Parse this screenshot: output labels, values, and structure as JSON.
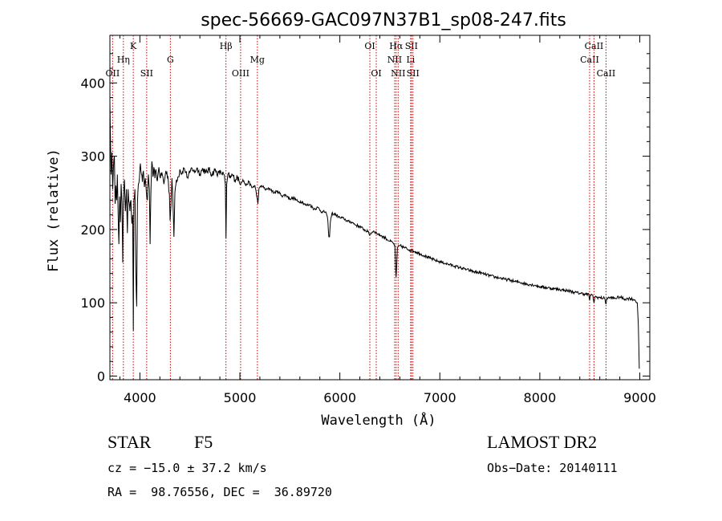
{
  "chart_data": {
    "type": "line",
    "title": "spec-56669-GAC097N37B1_sp08-247.fits",
    "xlabel": "Wavelength (Å)",
    "ylabel": "Flux (relative)",
    "xlim": [
      3700,
      9100
    ],
    "ylim": [
      -5,
      465
    ],
    "xticks": [
      4000,
      5000,
      6000,
      7000,
      8000,
      9000
    ],
    "yticks": [
      0,
      100,
      200,
      300,
      400
    ],
    "grid": false,
    "spectrum_anchors": [
      [
        3700,
        375
      ],
      [
        3705,
        330
      ],
      [
        3712,
        275
      ],
      [
        3720,
        305
      ],
      [
        3728,
        255
      ],
      [
        3735,
        285
      ],
      [
        3745,
        300
      ],
      [
        3752,
        235
      ],
      [
        3760,
        260
      ],
      [
        3768,
        240
      ],
      [
        3775,
        275
      ],
      [
        3782,
        225
      ],
      [
        3790,
        180
      ],
      [
        3797,
        245
      ],
      [
        3805,
        210
      ],
      [
        3812,
        262
      ],
      [
        3820,
        235
      ],
      [
        3828,
        155
      ],
      [
        3835,
        240
      ],
      [
        3845,
        268
      ],
      [
        3855,
        225
      ],
      [
        3865,
        255
      ],
      [
        3875,
        195
      ],
      [
        3882,
        255
      ],
      [
        3888,
        240
      ],
      [
        3900,
        225
      ],
      [
        3910,
        240
      ],
      [
        3920,
        208
      ],
      [
        3928,
        220
      ],
      [
        3934,
        62
      ],
      [
        3940,
        240
      ],
      [
        3950,
        255
      ],
      [
        3960,
        140
      ],
      [
        3968,
        95
      ],
      [
        3975,
        235
      ],
      [
        3985,
        262
      ],
      [
        3995,
        270
      ],
      [
        4005,
        290
      ],
      [
        4015,
        275
      ],
      [
        4025,
        265
      ],
      [
        4035,
        280
      ],
      [
        4045,
        258
      ],
      [
        4055,
        270
      ],
      [
        4065,
        250
      ],
      [
        4075,
        240
      ],
      [
        4085,
        275
      ],
      [
        4095,
        255
      ],
      [
        4102,
        180
      ],
      [
        4110,
        250
      ],
      [
        4120,
        293
      ],
      [
        4130,
        272
      ],
      [
        4140,
        285
      ],
      [
        4150,
        270
      ],
      [
        4160,
        282
      ],
      [
        4175,
        266
      ],
      [
        4190,
        285
      ],
      [
        4205,
        270
      ],
      [
        4220,
        278
      ],
      [
        4240,
        262
      ],
      [
        4260,
        280
      ],
      [
        4280,
        272
      ],
      [
        4295,
        248
      ],
      [
        4302,
        212
      ],
      [
        4310,
        230
      ],
      [
        4320,
        270
      ],
      [
        4330,
        240
      ],
      [
        4340,
        190
      ],
      [
        4350,
        250
      ],
      [
        4365,
        268
      ],
      [
        4385,
        272
      ],
      [
        4400,
        282
      ],
      [
        4420,
        276
      ],
      [
        4440,
        284
      ],
      [
        4460,
        278
      ],
      [
        4480,
        270
      ],
      [
        4500,
        278
      ],
      [
        4520,
        284
      ],
      [
        4545,
        278
      ],
      [
        4570,
        284
      ],
      [
        4600,
        276
      ],
      [
        4630,
        283
      ],
      [
        4660,
        277
      ],
      [
        4690,
        282
      ],
      [
        4720,
        275
      ],
      [
        4750,
        281
      ],
      [
        4780,
        276
      ],
      [
        4810,
        278
      ],
      [
        4840,
        275
      ],
      [
        4855,
        262
      ],
      [
        4861,
        188
      ],
      [
        4868,
        262
      ],
      [
        4885,
        276
      ],
      [
        4905,
        270
      ],
      [
        4925,
        275
      ],
      [
        4950,
        268
      ],
      [
        4975,
        272
      ],
      [
        5000,
        262
      ],
      [
        5030,
        268
      ],
      [
        5060,
        260
      ],
      [
        5090,
        265
      ],
      [
        5120,
        257
      ],
      [
        5150,
        260
      ],
      [
        5172,
        243
      ],
      [
        5180,
        235
      ],
      [
        5190,
        255
      ],
      [
        5220,
        260
      ],
      [
        5260,
        254
      ],
      [
        5300,
        256
      ],
      [
        5340,
        250
      ],
      [
        5380,
        252
      ],
      [
        5420,
        246
      ],
      [
        5460,
        247
      ],
      [
        5500,
        242
      ],
      [
        5540,
        243
      ],
      [
        5580,
        238
      ],
      [
        5620,
        238
      ],
      [
        5660,
        233
      ],
      [
        5700,
        234
      ],
      [
        5740,
        228
      ],
      [
        5780,
        230
      ],
      [
        5820,
        224
      ],
      [
        5860,
        224
      ],
      [
        5880,
        212
      ],
      [
        5890,
        190
      ],
      [
        5897,
        190
      ],
      [
        5905,
        210
      ],
      [
        5920,
        222
      ],
      [
        5960,
        220
      ],
      [
        6000,
        216
      ],
      [
        6040,
        215
      ],
      [
        6080,
        211
      ],
      [
        6120,
        210
      ],
      [
        6160,
        206
      ],
      [
        6200,
        204
      ],
      [
        6240,
        200
      ],
      [
        6280,
        197
      ],
      [
        6300,
        193
      ],
      [
        6320,
        196
      ],
      [
        6340,
        198
      ],
      [
        6380,
        194
      ],
      [
        6420,
        191
      ],
      [
        6460,
        188
      ],
      [
        6500,
        184
      ],
      [
        6530,
        182
      ],
      [
        6550,
        178
      ],
      [
        6558,
        145
      ],
      [
        6563,
        135
      ],
      [
        6568,
        148
      ],
      [
        6575,
        175
      ],
      [
        6600,
        178
      ],
      [
        6650,
        175
      ],
      [
        6700,
        172
      ],
      [
        6750,
        170
      ],
      [
        6800,
        167
      ],
      [
        6850,
        164
      ],
      [
        6900,
        161
      ],
      [
        6950,
        158
      ],
      [
        7000,
        156
      ],
      [
        7050,
        154
      ],
      [
        7100,
        152
      ],
      [
        7150,
        150
      ],
      [
        7200,
        148
      ],
      [
        7250,
        146
      ],
      [
        7300,
        144
      ],
      [
        7350,
        142
      ],
      [
        7400,
        141
      ],
      [
        7450,
        139
      ],
      [
        7500,
        137
      ],
      [
        7550,
        135
      ],
      [
        7600,
        134
      ],
      [
        7650,
        132
      ],
      [
        7700,
        131
      ],
      [
        7750,
        129
      ],
      [
        7800,
        128
      ],
      [
        7850,
        126
      ],
      [
        7900,
        125
      ],
      [
        7950,
        124
      ],
      [
        8000,
        122
      ],
      [
        8050,
        121
      ],
      [
        8100,
        120
      ],
      [
        8150,
        119
      ],
      [
        8200,
        118
      ],
      [
        8250,
        117
      ],
      [
        8300,
        116
      ],
      [
        8350,
        114
      ],
      [
        8400,
        113
      ],
      [
        8450,
        112
      ],
      [
        8490,
        111
      ],
      [
        8498,
        103
      ],
      [
        8505,
        110
      ],
      [
        8530,
        110
      ],
      [
        8542,
        100
      ],
      [
        8550,
        108
      ],
      [
        8600,
        107
      ],
      [
        8650,
        106
      ],
      [
        8662,
        98
      ],
      [
        8670,
        106
      ],
      [
        8700,
        107
      ],
      [
        8750,
        106
      ],
      [
        8800,
        108
      ],
      [
        8850,
        105
      ],
      [
        8900,
        106
      ],
      [
        8950,
        104
      ],
      [
        8975,
        100
      ],
      [
        8985,
        70
      ],
      [
        8995,
        10
      ]
    ],
    "line_markers": [
      {
        "label": "OII",
        "wavelength": 3727,
        "row": 3
      },
      {
        "label": "Hη",
        "wavelength": 3835,
        "row": 2
      },
      {
        "label": "K",
        "wavelength": 3934,
        "row": 1
      },
      {
        "label": "SII",
        "wavelength": 4068,
        "row": 3
      },
      {
        "label": "G",
        "wavelength": 4305,
        "row": 2
      },
      {
        "label": "Hβ",
        "wavelength": 4861,
        "row": 1
      },
      {
        "label": "OIII",
        "wavelength": 5007,
        "row": 3
      },
      {
        "label": "Mg",
        "wavelength": 5175,
        "row": 2
      },
      {
        "label": "OI",
        "wavelength": 6300,
        "row": 1
      },
      {
        "label": "OI",
        "wavelength": 6364,
        "row": 3
      },
      {
        "label": "NII",
        "wavelength": 6548,
        "row": 2
      },
      {
        "label": "Hα",
        "wavelength": 6563,
        "row": 1
      },
      {
        "label": "NII",
        "wavelength": 6583,
        "row": 3
      },
      {
        "label": "Li",
        "wavelength": 6708,
        "row": 2
      },
      {
        "label": "SII",
        "wavelength": 6716,
        "row": 1
      },
      {
        "label": "SII",
        "wavelength": 6731,
        "row": 3
      },
      {
        "label": "CaII",
        "wavelength": 8498,
        "row": 2
      },
      {
        "label": "CaII",
        "wavelength": 8542,
        "row": 1
      },
      {
        "label": "CaII",
        "wavelength": 8662,
        "row": 3
      }
    ],
    "line_color": "#000000",
    "marker_color": "#cc0000"
  },
  "info": {
    "object_class": "STAR",
    "subclass": "F5",
    "survey": "LAMOST DR2",
    "cz": "cz = −15.0 ± 37.2 km/s",
    "obs_date": "Obs−Date: 20140111",
    "radec": "RA =  98.76556, DEC =  36.89720"
  }
}
